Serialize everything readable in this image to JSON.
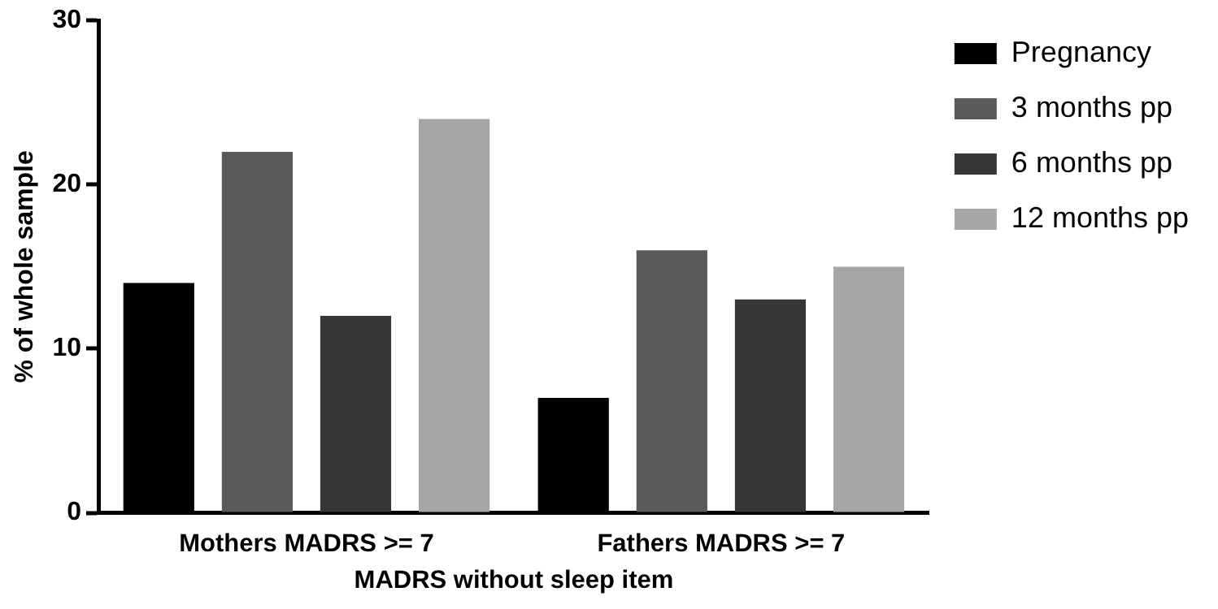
{
  "chart_data": {
    "type": "bar",
    "xlabel": "MADRS without sleep item",
    "ylabel": "% of whole sample",
    "categories": [
      "Mothers MADRS >= 7",
      "Fathers MADRS >= 7"
    ],
    "series": [
      {
        "name": "Pregnancy",
        "color": "#000000",
        "values": [
          14,
          7
        ]
      },
      {
        "name": "3 months pp",
        "color": "#5a5a5a",
        "values": [
          22,
          16
        ]
      },
      {
        "name": "6 months pp",
        "color": "#363636",
        "values": [
          12,
          13
        ]
      },
      {
        "name": "12 months pp",
        "color": "#a6a6a6",
        "values": [
          24,
          15
        ]
      }
    ],
    "ylim": [
      0,
      30
    ],
    "yticks": [
      0,
      10,
      20,
      30
    ],
    "grid": false,
    "legend": "top right"
  }
}
